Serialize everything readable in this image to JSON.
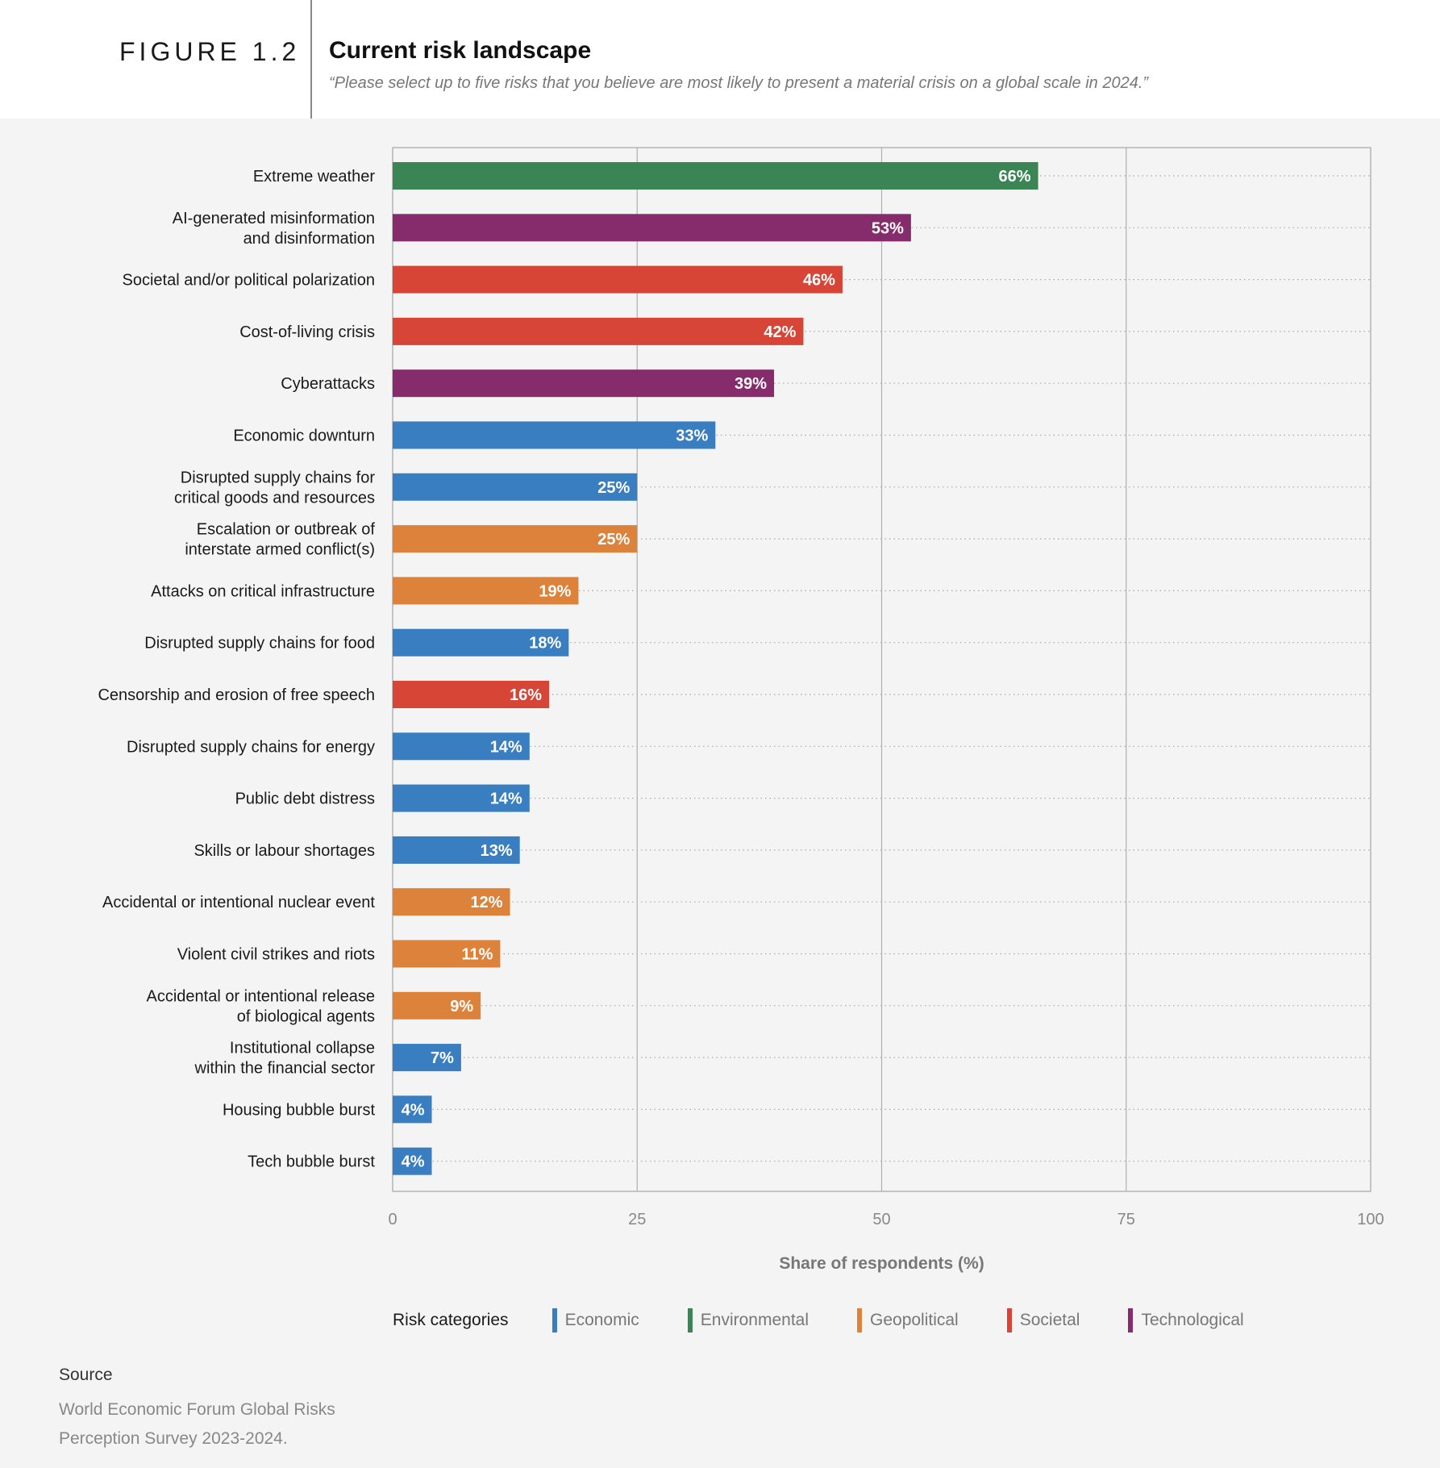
{
  "header": {
    "figure_label": "FIGURE 1.2",
    "title": "Current risk landscape",
    "subtitle": "“Please select up to five risks that you believe are most likely to present a material crisis on a global scale in 2024.”"
  },
  "chart_data": {
    "type": "bar",
    "orientation": "horizontal",
    "title": "Current risk landscape",
    "xlabel": "Share of respondents (%)",
    "ylabel": "",
    "xlim": [
      0,
      100
    ],
    "xticks": [
      0,
      25,
      50,
      75,
      100
    ],
    "grid": "vertical gridlines at ticks; dotted row guides",
    "value_suffix": "%",
    "categories": [
      [
        "Extreme weather"
      ],
      [
        "AI-generated misinformation",
        "and disinformation"
      ],
      [
        "Societal and/or political polarization"
      ],
      [
        "Cost-of-living crisis"
      ],
      [
        "Cyberattacks"
      ],
      [
        "Economic downturn"
      ],
      [
        "Disrupted supply chains for",
        "critical goods and resources"
      ],
      [
        "Escalation or outbreak of",
        "interstate armed conflict(s)"
      ],
      [
        "Attacks on critical infrastructure"
      ],
      [
        "Disrupted supply chains for food"
      ],
      [
        "Censorship and erosion of free speech"
      ],
      [
        "Disrupted supply chains for energy"
      ],
      [
        "Public debt distress"
      ],
      [
        "Skills or labour shortages"
      ],
      [
        "Accidental or intentional nuclear event"
      ],
      [
        "Violent civil strikes and riots"
      ],
      [
        "Accidental or intentional release",
        "of biological agents"
      ],
      [
        "Institutional collapse",
        "within the financial sector"
      ],
      [
        "Housing bubble burst"
      ],
      [
        "Tech bubble burst"
      ]
    ],
    "values": [
      66,
      53,
      46,
      42,
      39,
      33,
      25,
      25,
      19,
      18,
      16,
      14,
      14,
      13,
      12,
      11,
      9,
      7,
      4,
      4
    ],
    "bar_category": [
      "Environmental",
      "Technological",
      "Societal",
      "Societal",
      "Technological",
      "Economic",
      "Economic",
      "Geopolitical",
      "Geopolitical",
      "Economic",
      "Societal",
      "Economic",
      "Economic",
      "Economic",
      "Geopolitical",
      "Geopolitical",
      "Geopolitical",
      "Economic",
      "Economic",
      "Economic"
    ],
    "category_colors": {
      "Economic": "#3a7ec2",
      "Environmental": "#3a8553",
      "Geopolitical": "#dd823b",
      "Societal": "#d64535",
      "Technological": "#862c6c"
    },
    "legend": {
      "title": "Risk categories",
      "position": "bottom",
      "items": [
        "Economic",
        "Environmental",
        "Geopolitical",
        "Societal",
        "Technological"
      ]
    }
  },
  "source": {
    "label": "Source",
    "text": "World Economic Forum Global Risks Perception Survey 2023-2024."
  }
}
